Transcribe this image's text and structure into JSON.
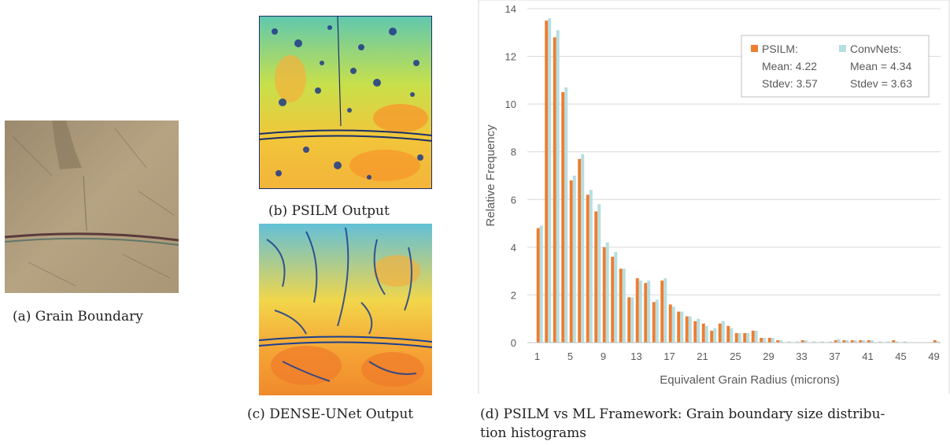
{
  "captions": {
    "a": "(a) Grain Boundary",
    "b": "(b) PSILM Output",
    "c": "(c) DENSE-UNet Output",
    "d_line1": "(d) PSILM vs ML Framework: Grain boundary size distribu-",
    "d_line2": "tion histograms"
  },
  "colors": {
    "psilm": "#ED7D31",
    "convnets": "#B7DEE0",
    "axis_text": "#595959",
    "grid": "#D9D9D9"
  },
  "chart_data": {
    "type": "bar",
    "xlabel": "Equivalent Grain Radius (microns)",
    "ylabel": "Relative Frequency",
    "ylim": [
      0,
      14
    ],
    "yticks": [
      0,
      2,
      4,
      6,
      8,
      10,
      12,
      14
    ],
    "xtick_labels": [
      "1",
      "5",
      "9",
      "13",
      "17",
      "21",
      "25",
      "29",
      "33",
      "37",
      "41",
      "45",
      "49"
    ],
    "x": [
      1,
      2,
      3,
      4,
      5,
      6,
      7,
      8,
      9,
      10,
      11,
      12,
      13,
      14,
      15,
      16,
      17,
      18,
      19,
      20,
      21,
      22,
      23,
      24,
      25,
      26,
      27,
      28,
      29,
      30,
      31,
      32,
      33,
      34,
      35,
      36,
      37,
      38,
      39,
      40,
      41,
      42,
      43,
      44,
      45,
      46,
      47,
      48,
      49,
      50
    ],
    "series": [
      {
        "name": "PSILM:",
        "values": [
          0,
          4.8,
          13.5,
          12.8,
          10.5,
          6.8,
          7.7,
          6.2,
          5.5,
          4.0,
          3.6,
          3.1,
          1.9,
          2.7,
          2.5,
          1.7,
          2.6,
          1.6,
          1.3,
          1.1,
          0.9,
          0.8,
          0.5,
          0.8,
          0.7,
          0.4,
          0.4,
          0.5,
          0.2,
          0.2,
          0.1,
          0.0,
          0.0,
          0.1,
          0.0,
          0.0,
          0.0,
          0.1,
          0.1,
          0.1,
          0.1,
          0.1,
          0.0,
          0.0,
          0.1,
          0.0,
          0.0,
          0.0,
          0.0,
          0.1
        ]
      },
      {
        "name": "ConvNets:",
        "values": [
          0,
          4.9,
          13.6,
          13.1,
          10.7,
          7.0,
          7.9,
          6.4,
          5.8,
          4.2,
          3.8,
          3.1,
          1.9,
          2.6,
          2.6,
          1.8,
          2.7,
          1.5,
          1.3,
          1.1,
          1.0,
          0.7,
          0.6,
          0.9,
          0.6,
          0.4,
          0.4,
          0.5,
          0.2,
          0.2,
          0.1,
          0.05,
          0.05,
          0.1,
          0.05,
          0.05,
          0.05,
          0.15,
          0.1,
          0.1,
          0.1,
          0.1,
          0.05,
          0.05,
          0.05,
          0.05,
          0.0,
          0.0,
          0.0,
          0.05
        ]
      }
    ],
    "legend": {
      "placement": "top-right",
      "psilm_mean": "Mean: 4.22",
      "psilm_stdev": "Stdev: 3.57",
      "conv_mean": "Mean = 4.34",
      "conv_stdev": "Stdev = 3.63"
    }
  }
}
